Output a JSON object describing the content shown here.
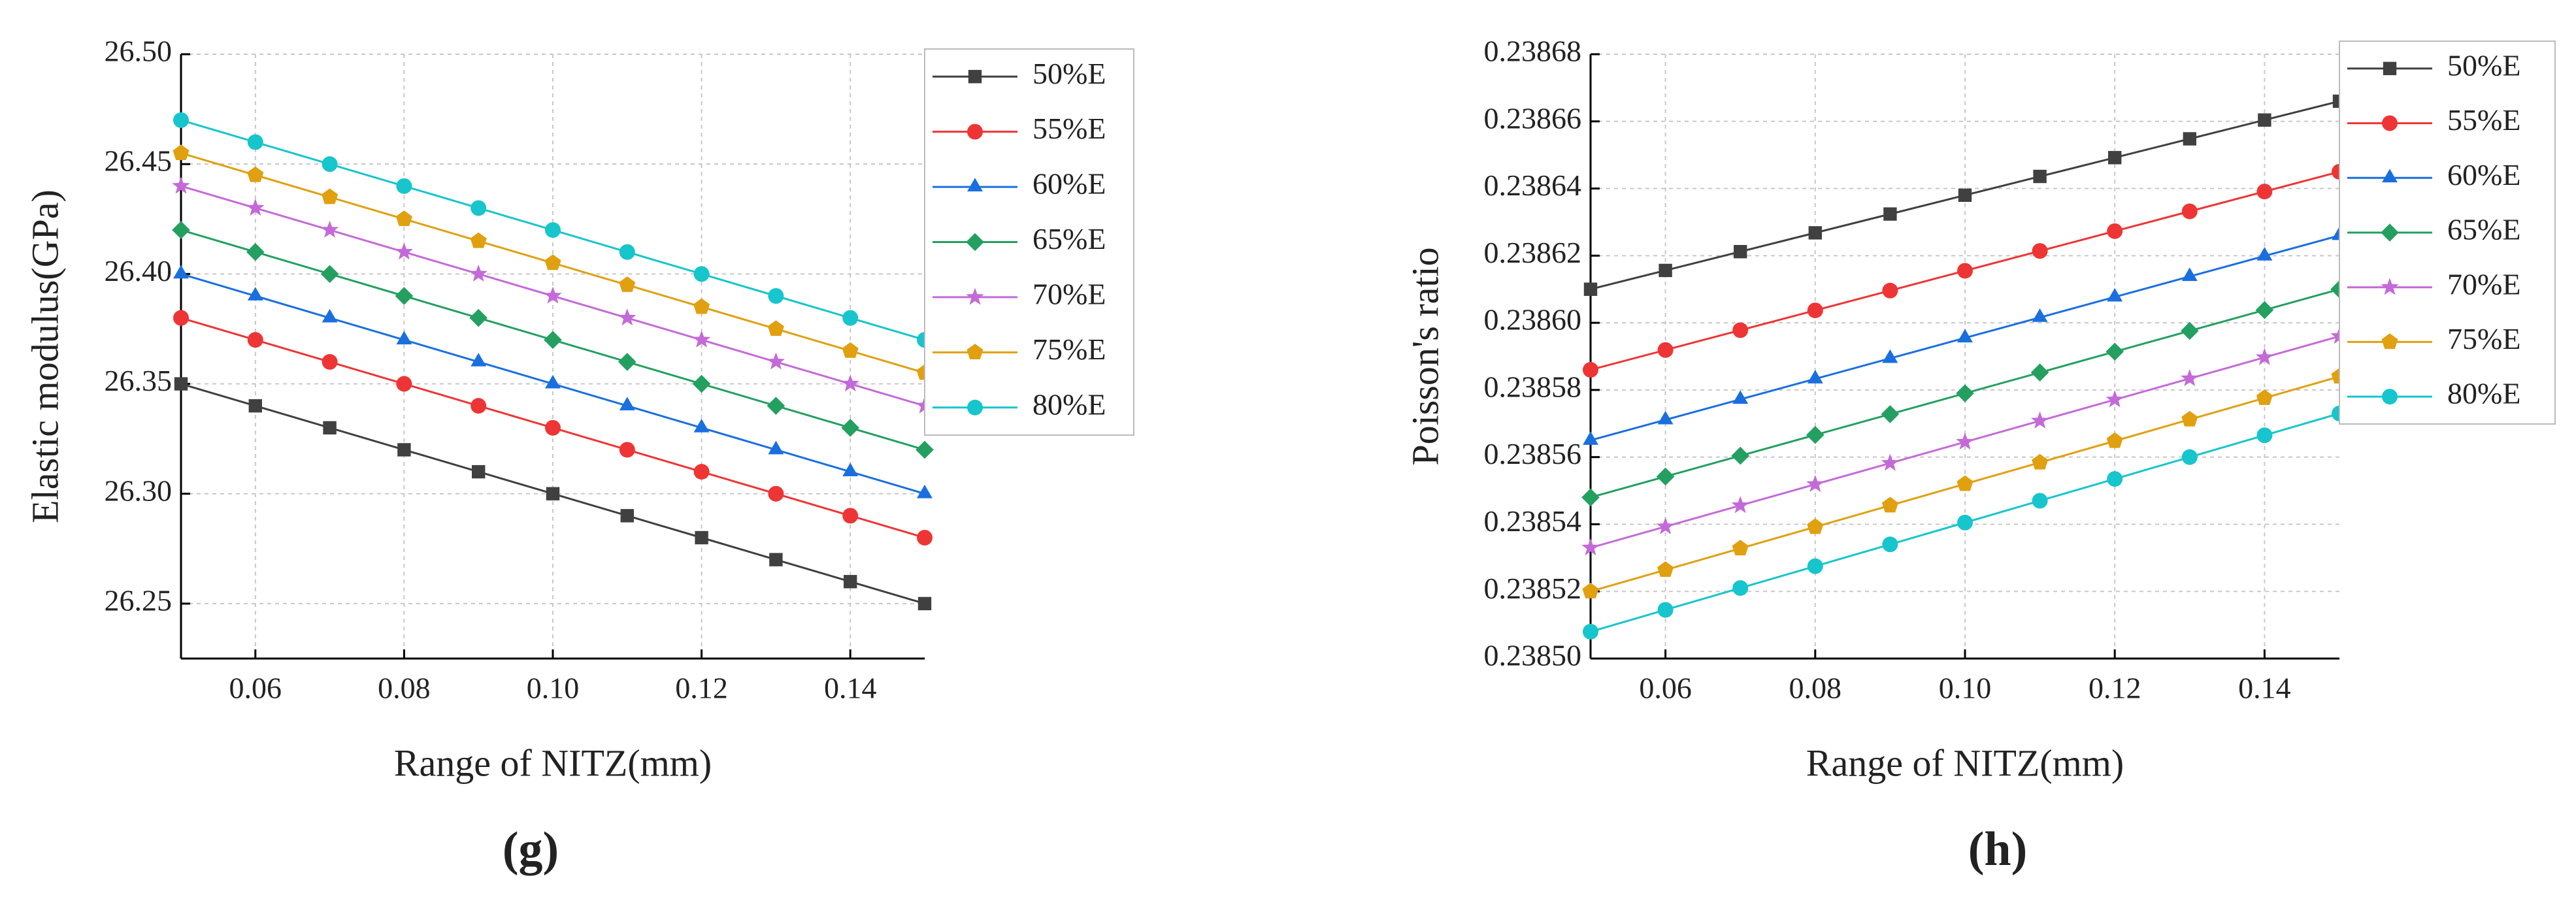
{
  "chart_data": [
    {
      "type": "line",
      "panel_label": "(g)",
      "xlabel": "Range of NITZ(mm)",
      "ylabel": "Elastic modulus(GPa)",
      "x": [
        0.05,
        0.06,
        0.07,
        0.08,
        0.09,
        0.1,
        0.11,
        0.12,
        0.13,
        0.14,
        0.15
      ],
      "xlim": [
        0.05,
        0.15
      ],
      "xticks": [
        0.06,
        0.08,
        {
          "value": 0.1,
          "label": "0.10"
        },
        0.12,
        0.14
      ],
      "ylim": [
        26.225,
        26.5
      ],
      "yticks": [
        26.25,
        {
          "value": 26.3,
          "label": "26.30"
        },
        26.35,
        {
          "value": 26.4,
          "label": "26.40"
        },
        26.45,
        {
          "value": 26.5,
          "label": "26.50"
        }
      ],
      "grid": true,
      "legend": "outside-right",
      "series": [
        {
          "name": "50%E",
          "color": "#404040",
          "marker": "square",
          "values": [
            26.35,
            26.34,
            26.33,
            26.32,
            26.31,
            26.3,
            26.29,
            26.28,
            26.27,
            26.26,
            26.25
          ]
        },
        {
          "name": "55%E",
          "color": "#ee3535",
          "marker": "circle",
          "values": [
            26.38,
            26.37,
            26.36,
            26.35,
            26.34,
            26.33,
            26.32,
            26.31,
            26.3,
            26.29,
            26.28
          ]
        },
        {
          "name": "60%E",
          "color": "#1a6fdf",
          "marker": "triangle",
          "values": [
            26.4,
            26.39,
            26.38,
            26.37,
            26.36,
            26.35,
            26.34,
            26.33,
            26.32,
            26.31,
            26.3
          ]
        },
        {
          "name": "65%E",
          "color": "#23a060",
          "marker": "diamond",
          "values": [
            26.42,
            26.41,
            26.4,
            26.39,
            26.38,
            26.37,
            26.36,
            26.35,
            26.34,
            26.33,
            26.32
          ]
        },
        {
          "name": "70%E",
          "color": "#c46ad8",
          "marker": "star",
          "values": [
            26.44,
            26.43,
            26.42,
            26.41,
            26.4,
            26.39,
            26.38,
            26.37,
            26.36,
            26.35,
            26.34
          ]
        },
        {
          "name": "75%E",
          "color": "#e0a010",
          "marker": "pentagon",
          "values": [
            26.455,
            26.445,
            26.435,
            26.425,
            26.415,
            26.405,
            26.395,
            26.385,
            26.375,
            26.365,
            26.355
          ]
        },
        {
          "name": "80%E",
          "color": "#17c5cc",
          "marker": "circle",
          "values": [
            26.47,
            26.46,
            26.45,
            26.44,
            26.43,
            26.42,
            26.41,
            26.4,
            26.39,
            26.38,
            26.37
          ]
        }
      ]
    },
    {
      "type": "line",
      "panel_label": "(h)",
      "xlabel": "Range of NITZ(mm)",
      "ylabel": "Poisson's ratio",
      "x": [
        0.05,
        0.06,
        0.07,
        0.08,
        0.09,
        0.1,
        0.11,
        0.12,
        0.13,
        0.14,
        0.15
      ],
      "xlim": [
        0.05,
        0.15
      ],
      "xticks": [
        0.06,
        0.08,
        {
          "value": 0.1,
          "label": "0.10"
        },
        0.12,
        0.14
      ],
      "ylim": [
        0.2385,
        0.23868
      ],
      "yticks": [
        {
          "value": 0.2385,
          "label": "0.23850"
        },
        0.23852,
        0.23854,
        0.23856,
        0.23858,
        {
          "value": 0.2386,
          "label": "0.23860"
        },
        0.23862,
        0.23864,
        0.23866,
        0.23868
      ],
      "grid": true,
      "legend": "outside-right",
      "series": [
        {
          "name": "50%E",
          "color": "#404040",
          "marker": "square",
          "values": [
            0.23861,
            0.2386156,
            0.2386212,
            0.2386268,
            0.2386324,
            0.238638,
            0.2386436,
            0.2386492,
            0.2386548,
            0.2386604,
            0.238666
          ]
        },
        {
          "name": "55%E",
          "color": "#ee3535",
          "marker": "circle",
          "values": [
            0.238586,
            0.2385919,
            0.2385978,
            0.2386037,
            0.2386096,
            0.2386155,
            0.2386214,
            0.2386273,
            0.2386332,
            0.2386391,
            0.238645
          ]
        },
        {
          "name": "60%E",
          "color": "#1a6fdf",
          "marker": "triangle",
          "values": [
            0.238565,
            0.2385711,
            0.2385772,
            0.2385833,
            0.2385894,
            0.2385955,
            0.2386016,
            0.2386077,
            0.2386138,
            0.2386199,
            0.238626
          ]
        },
        {
          "name": "65%E",
          "color": "#23a060",
          "marker": "diamond",
          "values": [
            0.238548,
            0.2385542,
            0.2385604,
            0.2385666,
            0.2385728,
            0.238579,
            0.2385852,
            0.2385914,
            0.2385976,
            0.2386038,
            0.23861
          ]
        },
        {
          "name": "70%E",
          "color": "#c46ad8",
          "marker": "star",
          "values": [
            0.238533,
            0.2385393,
            0.2385456,
            0.2385519,
            0.2385582,
            0.2385645,
            0.2385708,
            0.2385771,
            0.2385834,
            0.2385897,
            0.238596
          ]
        },
        {
          "name": "75%E",
          "color": "#e0a010",
          "marker": "pentagon",
          "values": [
            0.23852,
            0.2385264,
            0.2385328,
            0.2385392,
            0.2385456,
            0.238552,
            0.2385584,
            0.2385648,
            0.2385712,
            0.2385776,
            0.238584
          ]
        },
        {
          "name": "80%E",
          "color": "#17c5cc",
          "marker": "circle",
          "values": [
            0.238508,
            0.2385145,
            0.238521,
            0.2385275,
            0.238534,
            0.2385405,
            0.238547,
            0.2385535,
            0.23856,
            0.2385665,
            0.238573
          ]
        }
      ]
    }
  ]
}
